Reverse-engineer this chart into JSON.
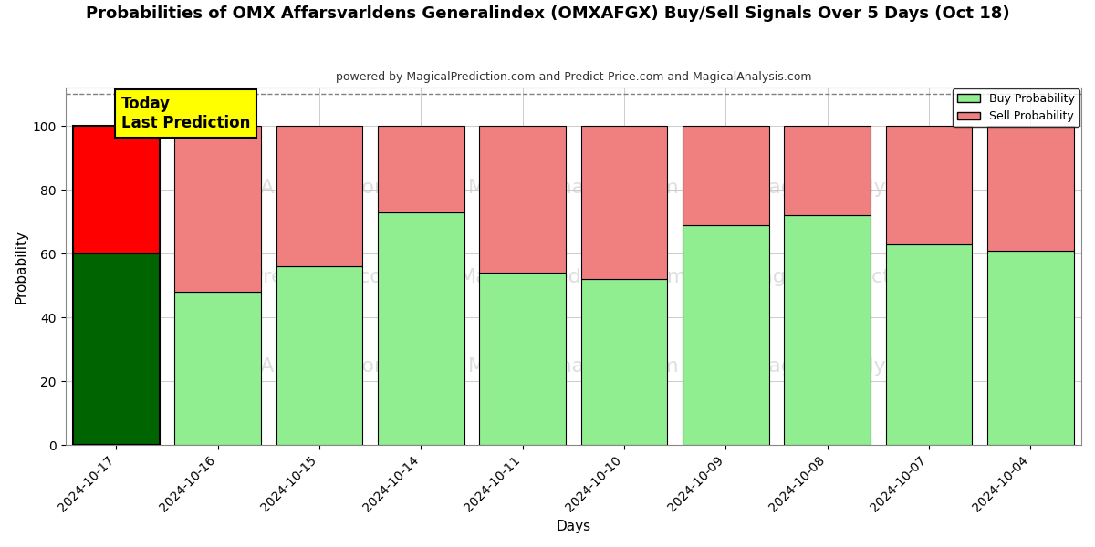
{
  "title": "Probabilities of OMX Affarsvarldens Generalindex (OMXAFGX) Buy/Sell Signals Over 5 Days (Oct 18)",
  "subtitle": "powered by MagicalPrediction.com and Predict-Price.com and MagicalAnalysis.com",
  "xlabel": "Days",
  "ylabel": "Probability",
  "dates": [
    "2024-10-17",
    "2024-10-16",
    "2024-10-15",
    "2024-10-14",
    "2024-10-11",
    "2024-10-10",
    "2024-10-09",
    "2024-10-08",
    "2024-10-07",
    "2024-10-04"
  ],
  "buy_probs": [
    60,
    48,
    56,
    73,
    54,
    52,
    69,
    72,
    63,
    61
  ],
  "sell_probs": [
    40,
    52,
    44,
    27,
    46,
    48,
    31,
    28,
    37,
    39
  ],
  "today_index": 0,
  "today_buy_color": "#006400",
  "today_sell_color": "#ff0000",
  "regular_buy_color": "#90EE90",
  "regular_sell_color": "#F08080",
  "today_label_bg": "#ffff00",
  "today_label_text": "Today\nLast Prediction",
  "ylim": [
    0,
    112
  ],
  "yticks": [
    0,
    20,
    40,
    60,
    80,
    100
  ],
  "dashed_line_y": 110,
  "legend_buy_label": "Buy Probability",
  "legend_sell_label": "Sell Probability",
  "bar_edge_color": "#000000",
  "bar_edge_width": 0.8,
  "today_bar_edge_width": 1.5,
  "watermark_color": "#c8c8c8",
  "grid_color": "#cccccc",
  "bar_width": 0.85,
  "bg_color": "#ffffff"
}
